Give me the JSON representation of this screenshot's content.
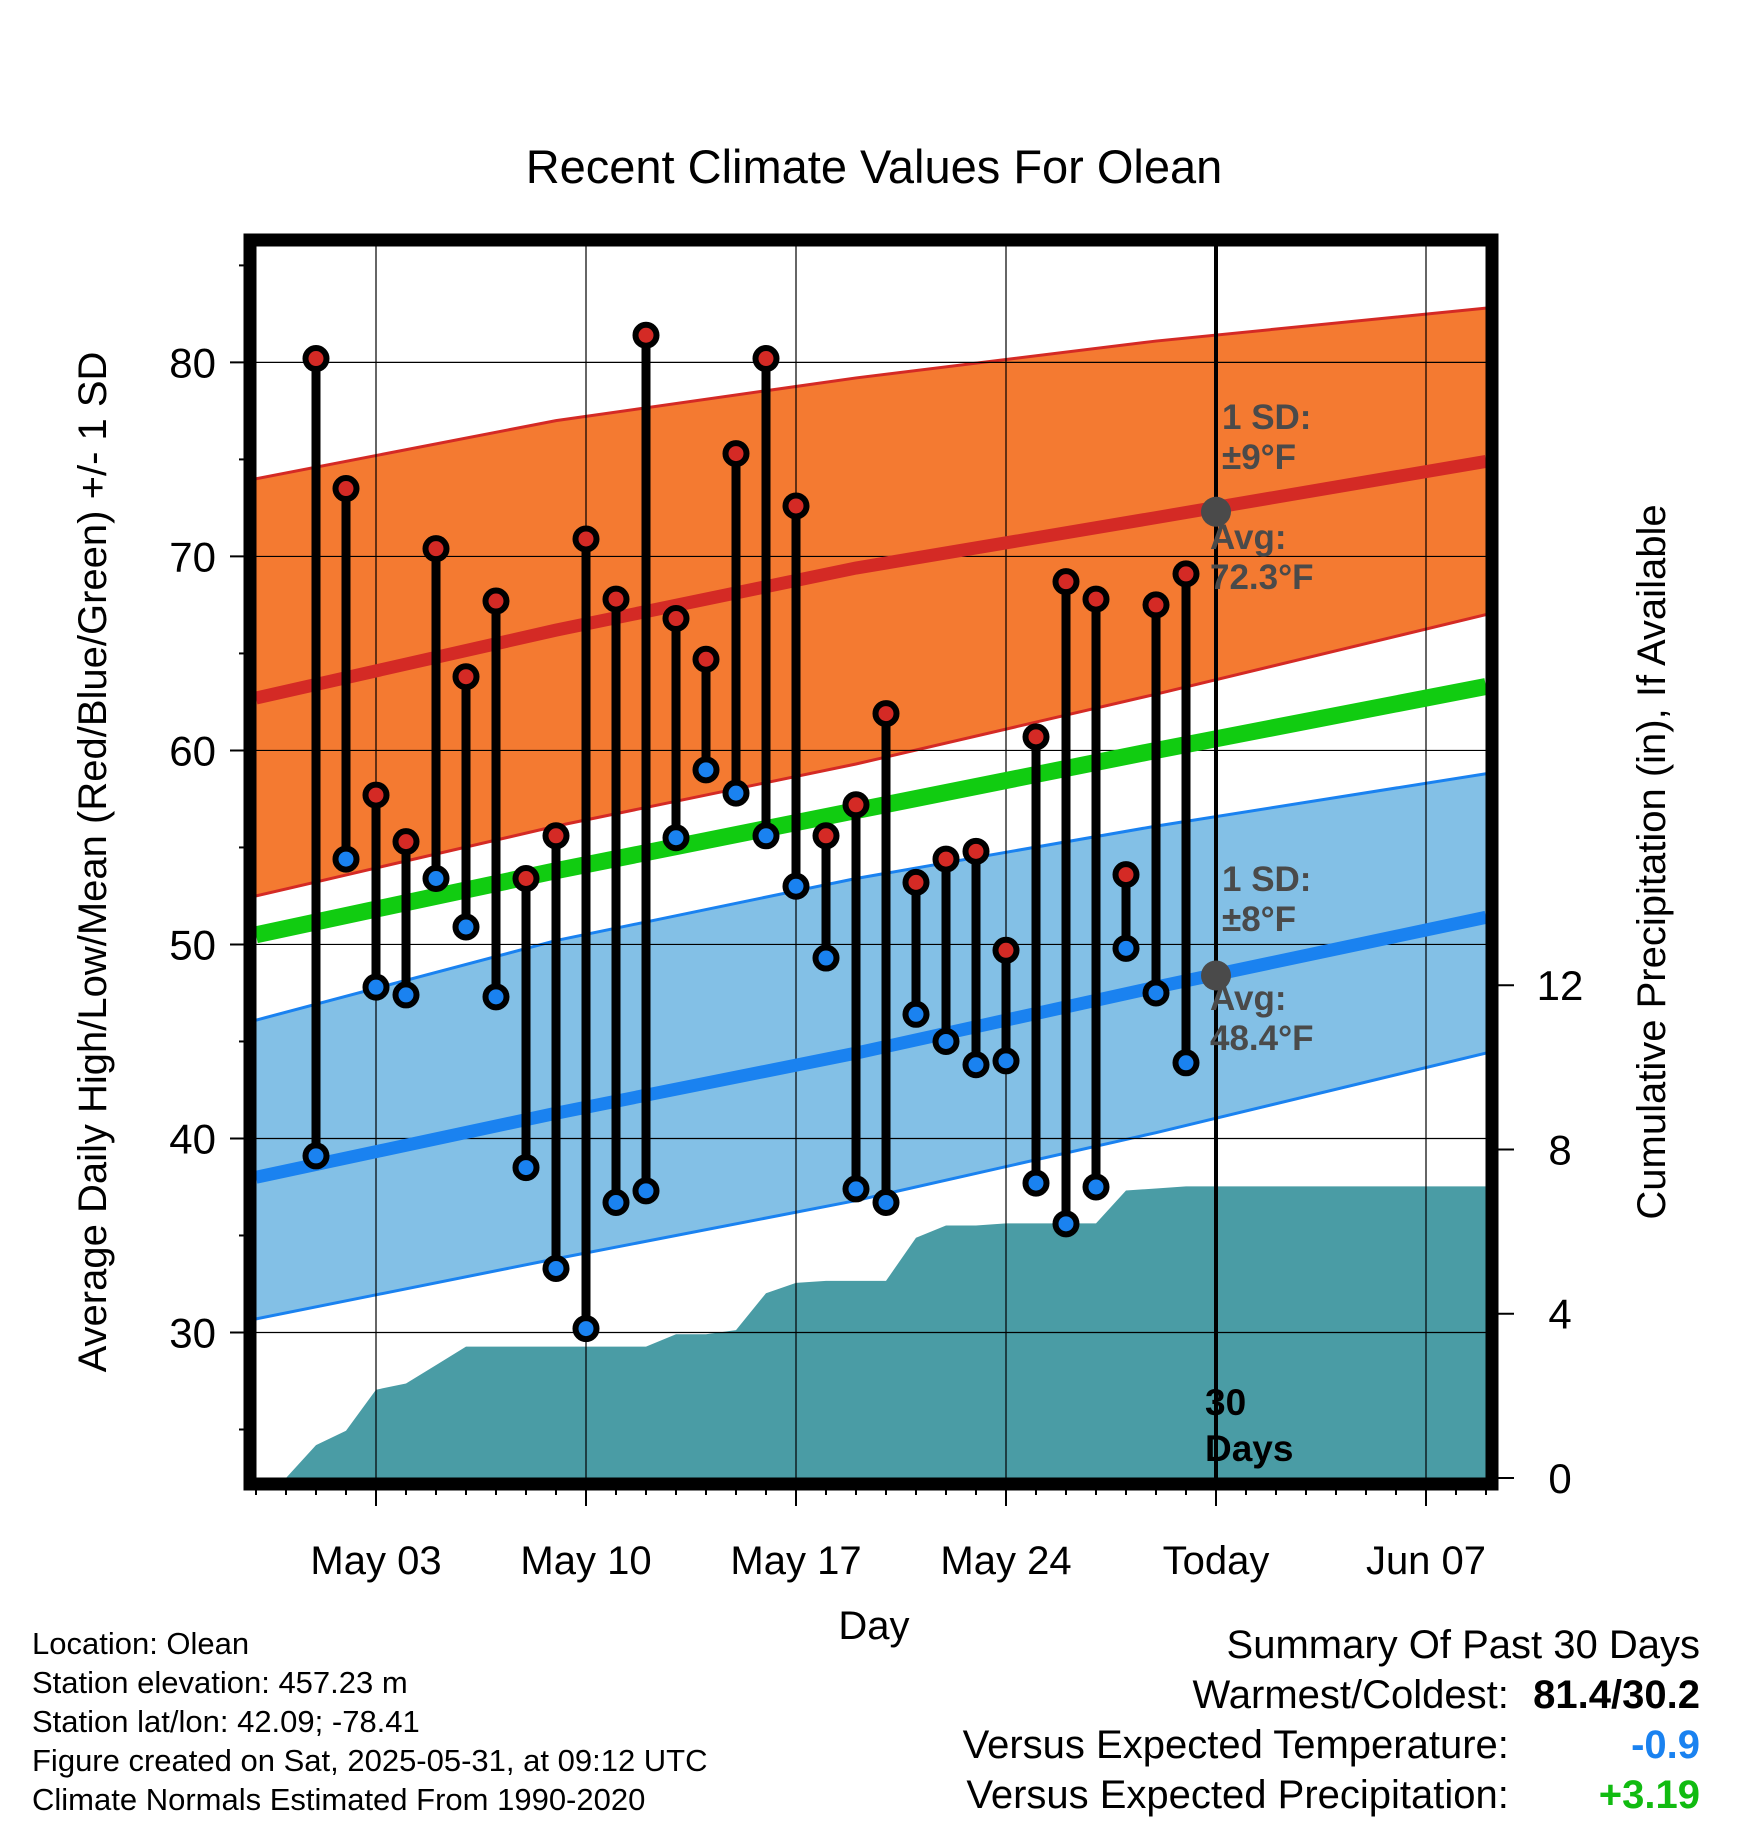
{
  "chart_data": {
    "type": "line",
    "title": "Recent Climate Values For Olean",
    "xlabel": "Day",
    "ylabel": "Average Daily High/Low/Mean (Red/Blue/Green) +/- 1 SD",
    "ylabel_right": "Cumulative Precipitation (in), If Available",
    "ylim": [
      22.5,
      86
    ],
    "y_ticks": [
      "30",
      "40",
      "50",
      "60",
      "70",
      "80"
    ],
    "ylim_right": [
      0,
      30
    ],
    "y_ticks_right": [
      "0",
      "4",
      "8",
      "12"
    ],
    "xlim": [
      "2025-04-29",
      "2025-06-09"
    ],
    "x_ticks": [
      {
        "label": "May 03",
        "date": "2025-05-03"
      },
      {
        "label": "May 10",
        "date": "2025-05-10"
      },
      {
        "label": "May 17",
        "date": "2025-05-17"
      },
      {
        "label": "May 24",
        "date": "2025-05-24"
      },
      {
        "label": "Today",
        "date": "2025-05-31"
      },
      {
        "label": "Jun 07",
        "date": "2025-06-07"
      }
    ],
    "grid": true,
    "today": "2025-05-31",
    "today_label": "30\nDays",
    "normals": {
      "x": [
        "2025-04-29",
        "2025-05-09",
        "2025-05-19",
        "2025-05-29",
        "2025-06-09"
      ],
      "avg_high": [
        62.7,
        66.2,
        69.4,
        72.0,
        74.9
      ],
      "avg_high_plus_sd": [
        74.0,
        77.0,
        79.2,
        81.1,
        82.8
      ],
      "avg_high_minus_sd": [
        52.5,
        56.1,
        59.3,
        62.9,
        67.0
      ],
      "avg_mean": [
        50.5,
        53.8,
        56.9,
        60.0,
        63.3
      ],
      "avg_low": [
        38.0,
        41.3,
        44.4,
        47.8,
        51.4
      ],
      "avg_low_plus_sd": [
        46.1,
        50.2,
        53.4,
        56.1,
        58.8
      ],
      "avg_low_minus_sd": [
        30.7,
        33.8,
        36.8,
        40.3,
        44.4
      ]
    },
    "series": [
      {
        "name": "Daily High",
        "x": [
          "2025-05-01",
          "2025-05-02",
          "2025-05-03",
          "2025-05-04",
          "2025-05-05",
          "2025-05-06",
          "2025-05-07",
          "2025-05-08",
          "2025-05-09",
          "2025-05-10",
          "2025-05-11",
          "2025-05-12",
          "2025-05-13",
          "2025-05-14",
          "2025-05-15",
          "2025-05-16",
          "2025-05-17",
          "2025-05-18",
          "2025-05-19",
          "2025-05-20",
          "2025-05-21",
          "2025-05-22",
          "2025-05-23",
          "2025-05-24",
          "2025-05-25",
          "2025-05-26",
          "2025-05-27",
          "2025-05-28",
          "2025-05-29",
          "2025-05-30"
        ],
        "values": [
          80.2,
          73.5,
          57.7,
          55.3,
          70.4,
          63.8,
          67.7,
          53.4,
          55.6,
          70.9,
          67.8,
          81.4,
          66.8,
          64.7,
          75.3,
          80.2,
          72.6,
          55.6,
          57.2,
          61.9,
          53.2,
          54.4,
          54.8,
          49.7,
          60.7,
          68.7,
          67.8,
          53.6,
          67.5,
          69.1
        ]
      },
      {
        "name": "Daily Low",
        "x": [
          "2025-05-01",
          "2025-05-02",
          "2025-05-03",
          "2025-05-04",
          "2025-05-05",
          "2025-05-06",
          "2025-05-07",
          "2025-05-08",
          "2025-05-09",
          "2025-05-10",
          "2025-05-11",
          "2025-05-12",
          "2025-05-13",
          "2025-05-14",
          "2025-05-15",
          "2025-05-16",
          "2025-05-17",
          "2025-05-18",
          "2025-05-19",
          "2025-05-20",
          "2025-05-21",
          "2025-05-22",
          "2025-05-23",
          "2025-05-24",
          "2025-05-25",
          "2025-05-26",
          "2025-05-27",
          "2025-05-28",
          "2025-05-29",
          "2025-05-30"
        ],
        "values": [
          39.1,
          54.4,
          47.8,
          47.4,
          53.4,
          50.9,
          47.3,
          38.5,
          33.3,
          30.2,
          36.7,
          37.3,
          55.5,
          59.0,
          57.8,
          55.6,
          53.0,
          49.3,
          37.4,
          36.7,
          46.4,
          45.0,
          43.8,
          44.0,
          37.7,
          35.6,
          37.5,
          49.8,
          47.5,
          43.9
        ]
      },
      {
        "name": "Cumulative Precipitation",
        "axis": "right",
        "x": [
          "2025-04-30",
          "2025-05-01",
          "2025-05-02",
          "2025-05-03",
          "2025-05-04",
          "2025-05-05",
          "2025-05-06",
          "2025-05-07",
          "2025-05-08",
          "2025-05-09",
          "2025-05-10",
          "2025-05-11",
          "2025-05-12",
          "2025-05-13",
          "2025-05-14",
          "2025-05-15",
          "2025-05-16",
          "2025-05-17",
          "2025-05-18",
          "2025-05-19",
          "2025-05-20",
          "2025-05-21",
          "2025-05-22",
          "2025-05-23",
          "2025-05-24",
          "2025-05-25",
          "2025-05-26",
          "2025-05-27",
          "2025-05-28",
          "2025-05-29",
          "2025-05-30",
          "2025-05-31",
          "2025-06-09"
        ],
        "values": [
          0.0,
          0.8,
          1.15,
          2.15,
          2.3,
          2.75,
          3.2,
          3.2,
          3.2,
          3.2,
          3.2,
          3.2,
          3.2,
          3.5,
          3.5,
          3.6,
          4.5,
          4.75,
          4.8,
          4.8,
          4.8,
          5.85,
          6.15,
          6.15,
          6.2,
          6.2,
          6.2,
          6.2,
          7.0,
          7.05,
          7.1,
          7.1,
          7.1
        ]
      }
    ],
    "annotations": {
      "high_sd": {
        "line1": "1 SD:",
        "line2": "±9°F"
      },
      "high_avg": {
        "line1": "Avg:",
        "line2": "72.3°F",
        "value": 72.3
      },
      "low_sd": {
        "line1": "1 SD:",
        "line2": "±8°F"
      },
      "low_avg": {
        "line1": "Avg:",
        "line2": "48.4°F",
        "value": 48.4
      }
    },
    "colors": {
      "high_band": "#f47a31",
      "high_line": "#d42a25",
      "low_band": "#83c0e6",
      "low_line": "#1a82f0",
      "mean_line": "#11cc11",
      "precip": "#4a9ca5",
      "high_marker": "#d42a25",
      "low_marker": "#1a82f0",
      "avg_marker": "#4a4a4a",
      "annotation": "#4a4a4a"
    }
  },
  "footer": {
    "location": "Location: Olean",
    "elevation": "Station elevation: 457.23 m",
    "latlon": "Station lat/lon: 42.09; -78.41",
    "created": "Figure created on Sat, 2025-05-31, at 09:12 UTC",
    "normals": "Climate Normals Estimated From 1990-2020"
  },
  "summary": {
    "title": "Summary Of Past 30 Days",
    "warmest_label": "Warmest/Coldest:",
    "warmest_value": "81.4/30.2",
    "temp_label": "Versus Expected Temperature:",
    "temp_value": "-0.9",
    "temp_color": "#1a82f0",
    "precip_label": "Versus Expected Precipitation:",
    "precip_value": "+3.19",
    "precip_color": "#11bb11"
  }
}
